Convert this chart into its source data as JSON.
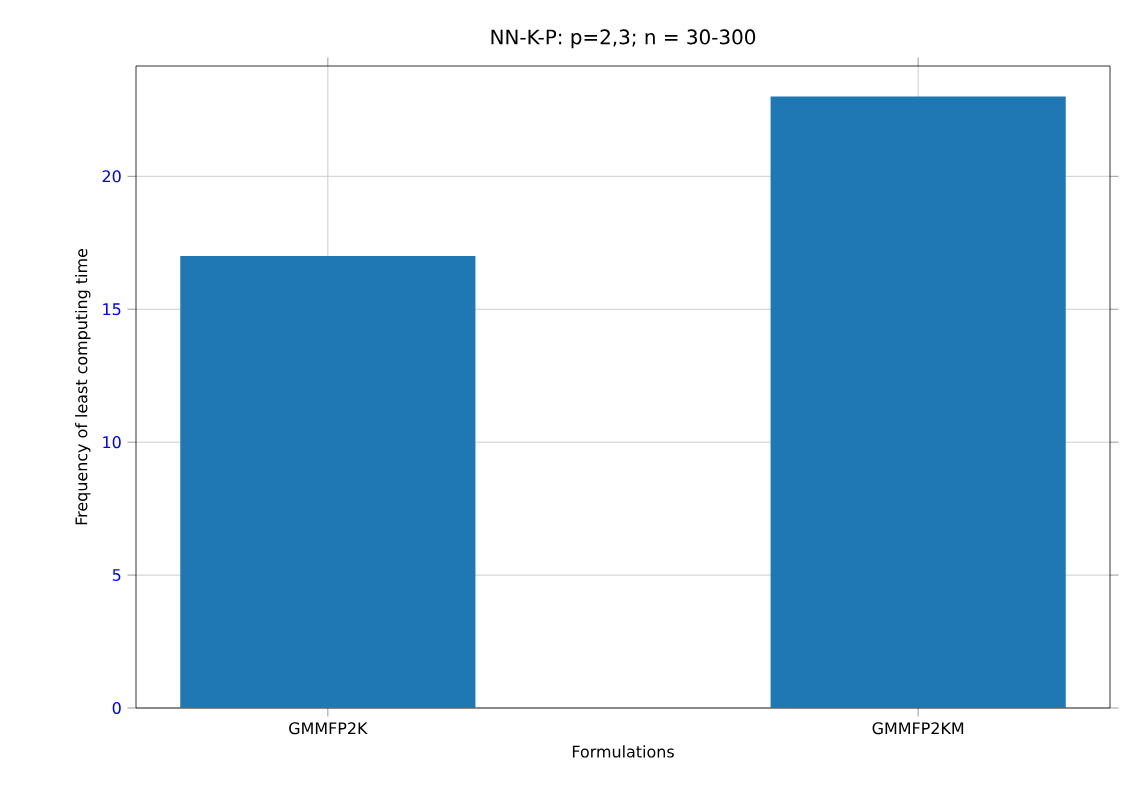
{
  "chart_data": {
    "type": "bar",
    "title": "NN-K-P: p=2,3; n = 30-300",
    "xlabel": "Formulations",
    "ylabel": "Frequency of least computing time",
    "categories": [
      "GMMFP2K",
      "GMMFP2KM"
    ],
    "values": [
      17,
      23
    ],
    "color": "#1f77b4",
    "ylim": [
      0,
      24.15
    ],
    "yticks": [
      0,
      5,
      10,
      15,
      20
    ],
    "grid": true
  }
}
